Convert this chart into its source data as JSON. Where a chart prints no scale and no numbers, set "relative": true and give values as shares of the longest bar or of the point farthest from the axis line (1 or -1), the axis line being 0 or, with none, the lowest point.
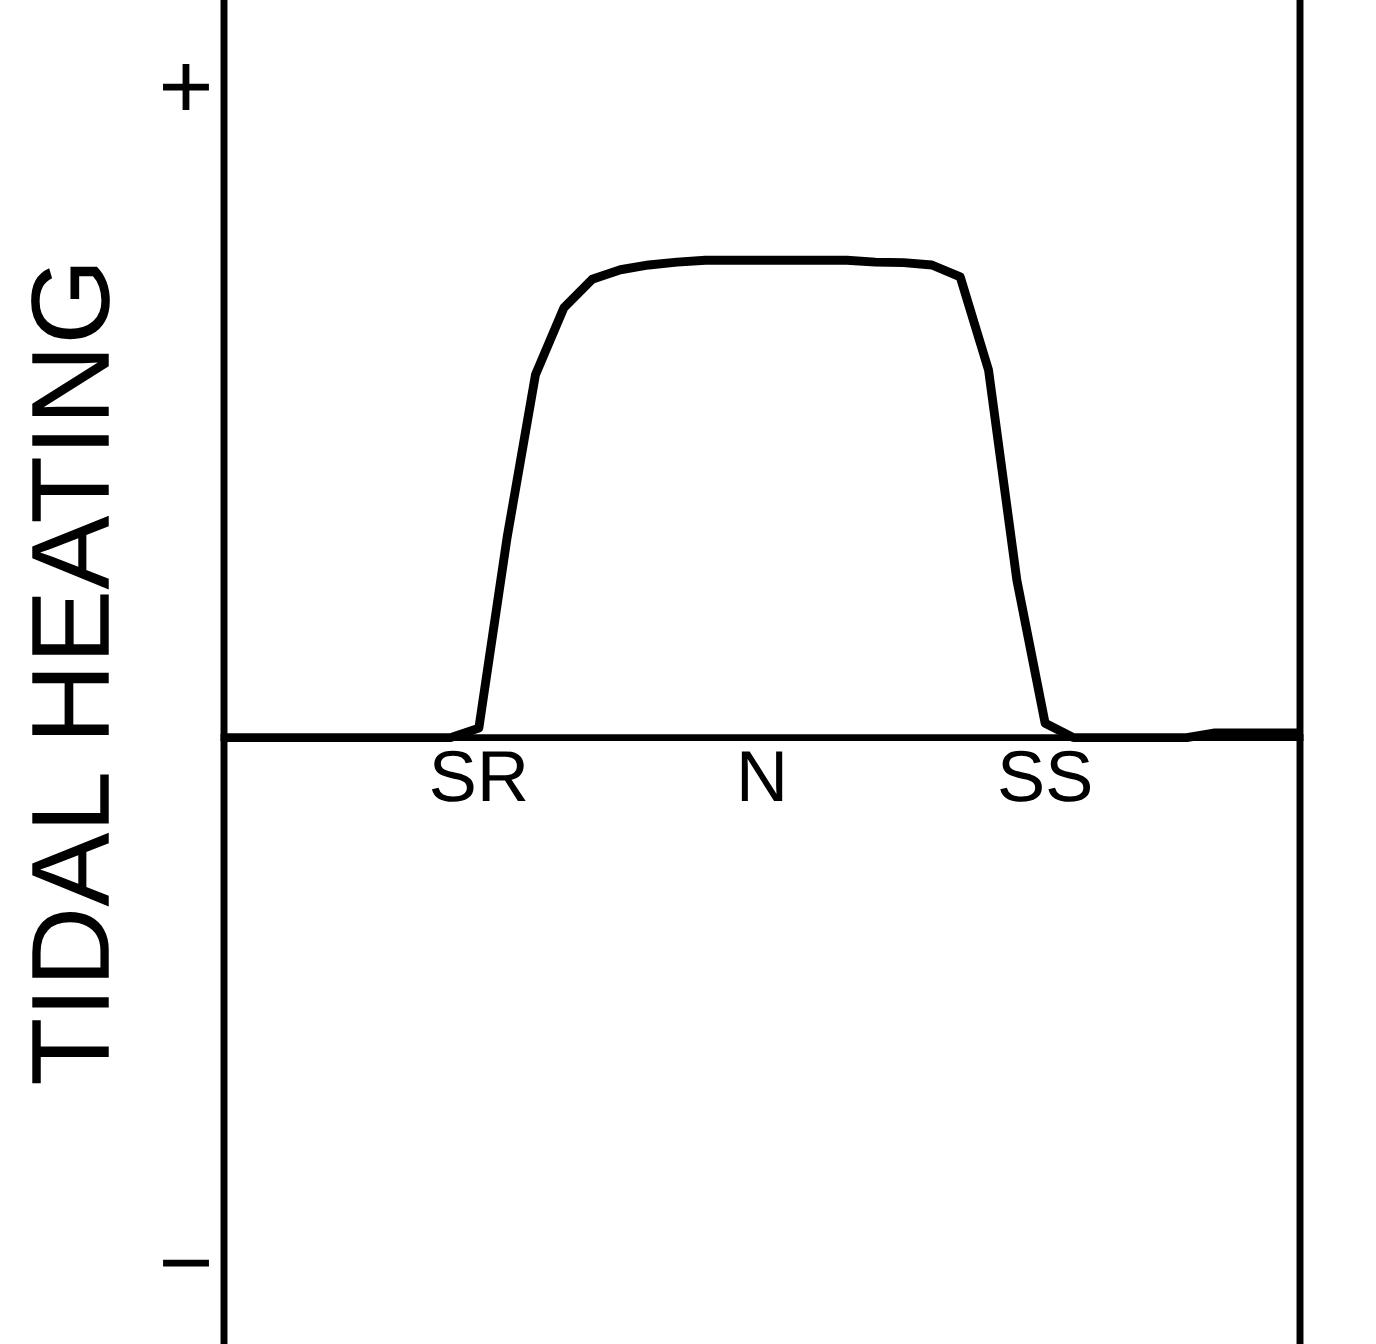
{
  "chart_data": {
    "type": "line",
    "relative": true,
    "ylabel": "TIDAL HEATING",
    "annotations": [
      "+",
      "−"
    ],
    "categories": [
      null,
      null,
      null,
      null,
      null,
      null,
      null,
      null,
      null,
      "SR",
      null,
      null,
      null,
      null,
      null,
      null,
      null,
      null,
      null,
      "N",
      null,
      null,
      null,
      null,
      null,
      null,
      null,
      null,
      null,
      "SS",
      null,
      null,
      null,
      null,
      null,
      null,
      null,
      null,
      null
    ],
    "series": [
      {
        "color": "#000000",
        "values": [
          0,
          0,
          0,
          0,
          0,
          0,
          0,
          0,
          0,
          0.02,
          0.42,
          0.76,
          0.9,
          0.96,
          0.98,
          0.99,
          0.996,
          1,
          1,
          1,
          1,
          1,
          1,
          0.996,
          0.995,
          0.99,
          0.965,
          0.77,
          0.33,
          0.03,
          0,
          0,
          0,
          0,
          0,
          0.01,
          0.01,
          0.01,
          0.01
        ]
      }
    ],
    "marker": "none",
    "line_style": "solid",
    "grid": false,
    "legend": false
  }
}
